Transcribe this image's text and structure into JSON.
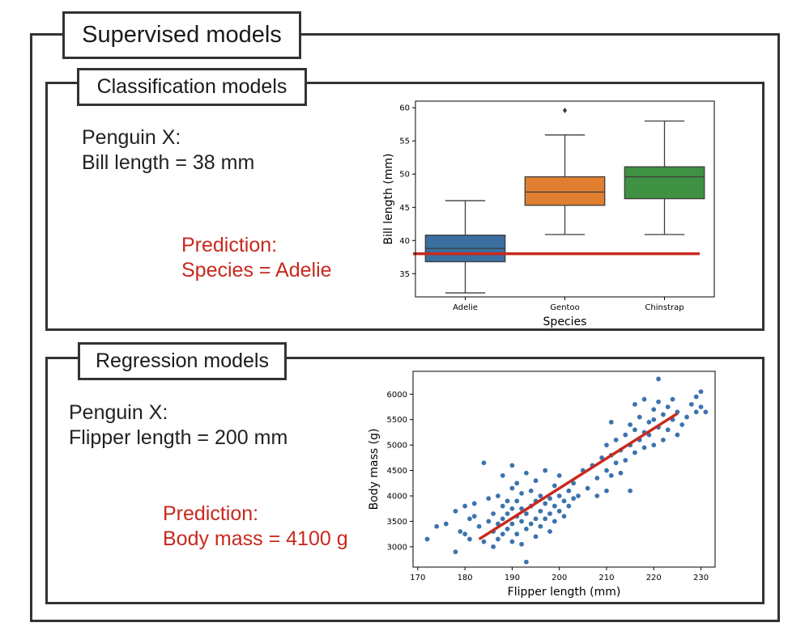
{
  "outer": {
    "title": "Supervised models"
  },
  "classification": {
    "title": "Classification models",
    "input": {
      "line1": "Penguin X:",
      "line2": "Bill length = 38 mm"
    },
    "prediction": {
      "line1": "Prediction:",
      "line2": "Species = Adelie"
    }
  },
  "regression": {
    "title": "Regression models",
    "input": {
      "line1": "Penguin X:",
      "line2": "Flipper length = 200 mm"
    },
    "prediction": {
      "line1": "Prediction:",
      "line2": "Body mass = 4100 g"
    }
  },
  "colors": {
    "frame": "#333333",
    "prediction": "#c8291e",
    "adelie": "#3a6f9f",
    "gentoo": "#e07f30",
    "chinstrap": "#3f9143",
    "points": "#3b73ad"
  },
  "chart_data": [
    {
      "type": "box",
      "xlabel": "Species",
      "ylabel": "Bill length (mm)",
      "categories": [
        "Adelie",
        "Gentoo",
        "Chinstrap"
      ],
      "ylim": [
        31.5,
        61
      ],
      "yticks": [
        35,
        40,
        45,
        50,
        55,
        60
      ],
      "boxes": [
        {
          "name": "Adelie",
          "whisker_low": 32.1,
          "q1": 36.8,
          "median": 38.8,
          "q3": 40.8,
          "whisker_high": 46.0,
          "outliers": [],
          "color": "#3a6f9f"
        },
        {
          "name": "Gentoo",
          "whisker_low": 40.9,
          "q1": 45.3,
          "median": 47.3,
          "q3": 49.6,
          "whisker_high": 55.9,
          "outliers": [
            59.6
          ],
          "color": "#e07f30"
        },
        {
          "name": "Chinstrap",
          "whisker_low": 40.9,
          "q1": 46.3,
          "median": 49.6,
          "q3": 51.1,
          "whisker_high": 58.0,
          "outliers": [],
          "color": "#3f9143"
        }
      ],
      "threshold_line": {
        "value": 38,
        "color": "#c8291e"
      }
    },
    {
      "type": "scatter",
      "xlabel": "Flipper length (mm)",
      "ylabel": "Body mass (g)",
      "xlim": [
        169,
        233
      ],
      "ylim": [
        2600,
        6450
      ],
      "xticks": [
        170,
        180,
        190,
        200,
        210,
        220,
        230
      ],
      "yticks": [
        3000,
        3500,
        4000,
        4500,
        5000,
        5500,
        6000
      ],
      "fit_line": {
        "x": [
          183,
          225
        ],
        "y": [
          3150,
          5620
        ],
        "color": "#c8291e"
      },
      "points": [
        [
          172,
          3150
        ],
        [
          174,
          3400
        ],
        [
          176,
          3450
        ],
        [
          178,
          2900
        ],
        [
          178,
          3700
        ],
        [
          179,
          3300
        ],
        [
          180,
          3800
        ],
        [
          180,
          3250
        ],
        [
          181,
          3550
        ],
        [
          181,
          3150
        ],
        [
          182,
          3600
        ],
        [
          182,
          3850
        ],
        [
          183,
          3400
        ],
        [
          184,
          3100
        ],
        [
          184,
          4650
        ],
        [
          185,
          3500
        ],
        [
          185,
          3950
        ],
        [
          186,
          3300
        ],
        [
          186,
          3650
        ],
        [
          186,
          3000
        ],
        [
          187,
          3450
        ],
        [
          187,
          3150
        ],
        [
          187,
          4000
        ],
        [
          188,
          3550
        ],
        [
          188,
          3800
        ],
        [
          188,
          3250
        ],
        [
          188,
          4400
        ],
        [
          189,
          3650
        ],
        [
          189,
          3350
        ],
        [
          189,
          3900
        ],
        [
          190,
          3450
        ],
        [
          190,
          3750
        ],
        [
          190,
          4150
        ],
        [
          190,
          3100
        ],
        [
          190,
          4600
        ],
        [
          191,
          3600
        ],
        [
          191,
          3250
        ],
        [
          191,
          3900
        ],
        [
          191,
          4250
        ],
        [
          192,
          3500
        ],
        [
          192,
          3750
        ],
        [
          192,
          3050
        ],
        [
          192,
          4050
        ],
        [
          193,
          3650
        ],
        [
          193,
          3350
        ],
        [
          193,
          2700
        ],
        [
          193,
          4450
        ],
        [
          194,
          3800
        ],
        [
          194,
          3450
        ],
        [
          194,
          4100
        ],
        [
          195,
          3550
        ],
        [
          195,
          3900
        ],
        [
          195,
          3200
        ],
        [
          195,
          4300
        ],
        [
          196,
          3700
        ],
        [
          196,
          3400
        ],
        [
          196,
          4000
        ],
        [
          197,
          3850
        ],
        [
          197,
          3550
        ],
        [
          197,
          4500
        ],
        [
          198,
          3650
        ],
        [
          198,
          3950
        ],
        [
          198,
          3300
        ],
        [
          199,
          3800
        ],
        [
          199,
          4200
        ],
        [
          199,
          3500
        ],
        [
          200,
          4000
        ],
        [
          200,
          3700
        ],
        [
          200,
          4400
        ],
        [
          201,
          3900
        ],
        [
          201,
          3600
        ],
        [
          202,
          4100
        ],
        [
          202,
          3800
        ],
        [
          203,
          4250
        ],
        [
          203,
          3950
        ],
        [
          204,
          4000
        ],
        [
          205,
          4500
        ],
        [
          206,
          4150
        ],
        [
          207,
          4600
        ],
        [
          208,
          4000
        ],
        [
          208,
          4350
        ],
        [
          209,
          4750
        ],
        [
          210,
          4100
        ],
        [
          210,
          4500
        ],
        [
          210,
          5000
        ],
        [
          211,
          4400
        ],
        [
          211,
          4800
        ],
        [
          211,
          5450
        ],
        [
          212,
          4650
        ],
        [
          212,
          5100
        ],
        [
          213,
          4450
        ],
        [
          213,
          4900
        ],
        [
          214,
          5200
        ],
        [
          214,
          4700
        ],
        [
          215,
          5000
        ],
        [
          215,
          5400
        ],
        [
          215,
          4100
        ],
        [
          216,
          5300
        ],
        [
          216,
          4850
        ],
        [
          216,
          5800
        ],
        [
          217,
          5100
        ],
        [
          217,
          5550
        ],
        [
          218,
          5250
        ],
        [
          218,
          4950
        ],
        [
          218,
          5900
        ],
        [
          219,
          5450
        ],
        [
          219,
          5200
        ],
        [
          220,
          5700
        ],
        [
          220,
          5000
        ],
        [
          220,
          5500
        ],
        [
          221,
          5350
        ],
        [
          221,
          6300
        ],
        [
          221,
          5850
        ],
        [
          222,
          5600
        ],
        [
          222,
          5100
        ],
        [
          223,
          5750
        ],
        [
          223,
          5300
        ],
        [
          224,
          5500
        ],
        [
          224,
          5900
        ],
        [
          225,
          5650
        ],
        [
          225,
          5200
        ],
        [
          226,
          5400
        ],
        [
          227,
          5550
        ],
        [
          228,
          5800
        ],
        [
          229,
          5650
        ],
        [
          229,
          5950
        ],
        [
          230,
          5750
        ],
        [
          230,
          6050
        ],
        [
          231,
          5650
        ]
      ]
    }
  ]
}
